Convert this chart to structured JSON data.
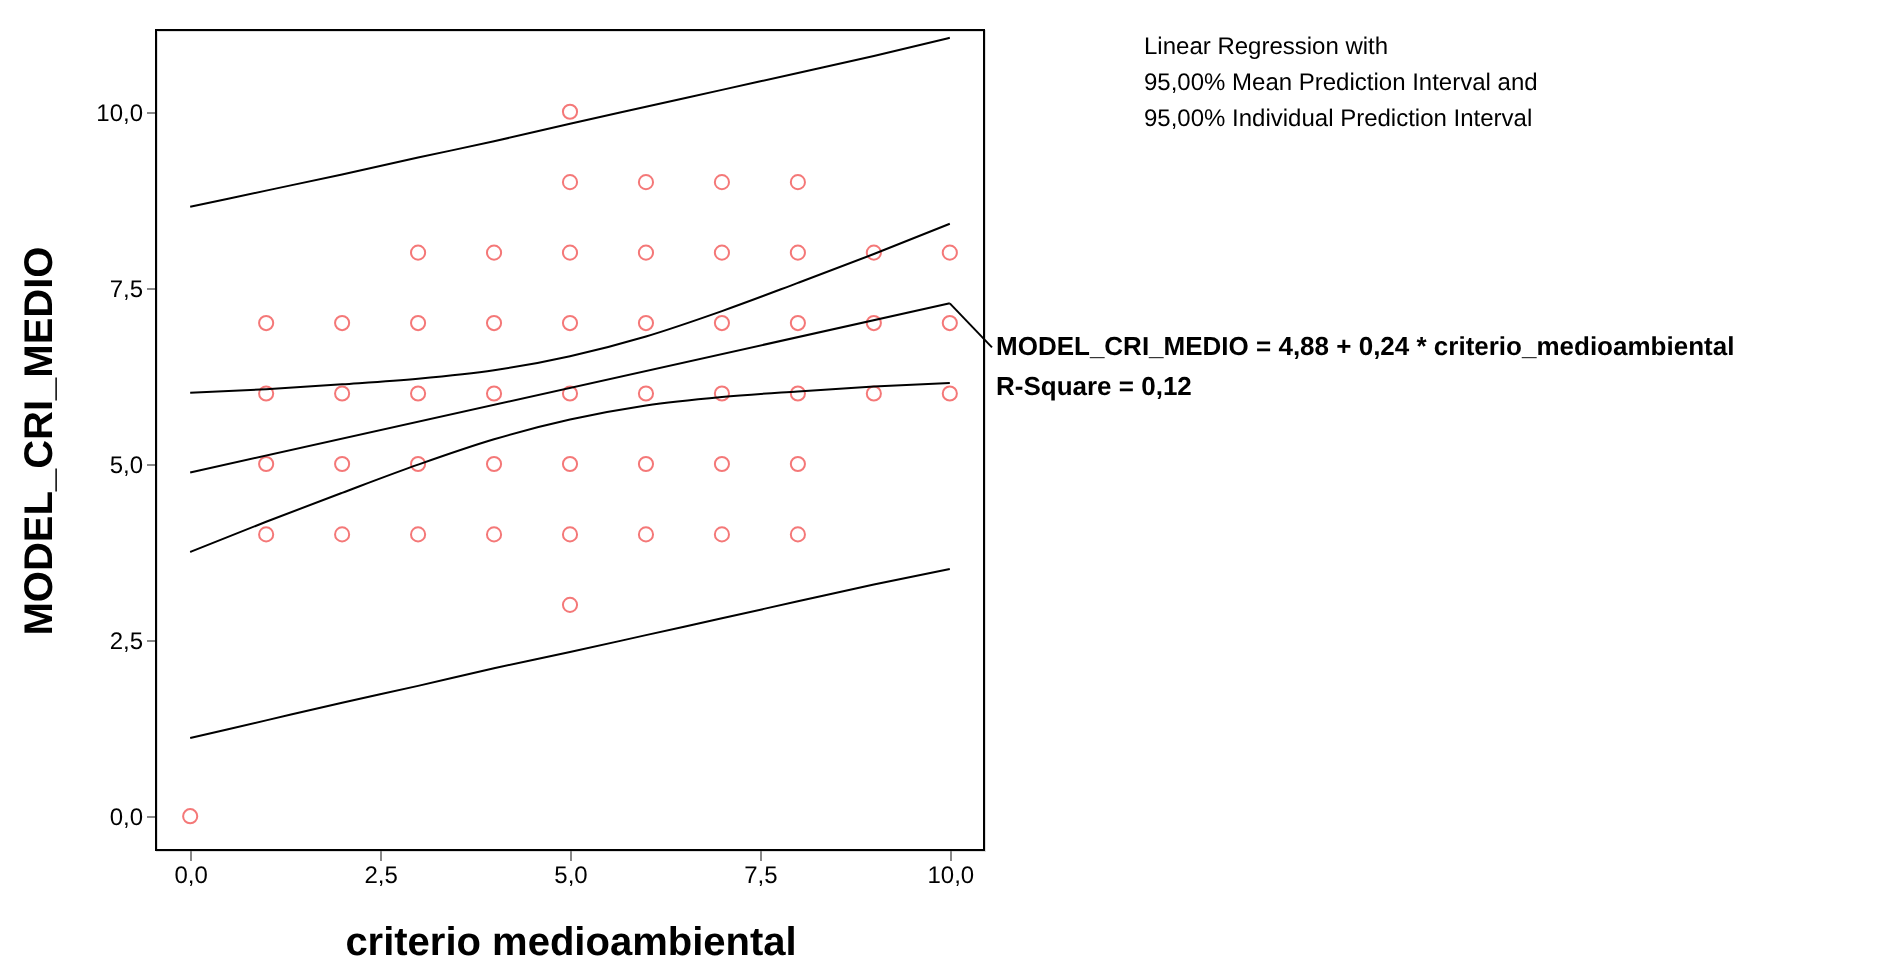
{
  "chart_data": {
    "type": "scatter",
    "xlabel": "criterio  medioambiental",
    "ylabel": "MODEL_CRI_MEDIO",
    "xlim": [
      -0.45,
      10.45
    ],
    "ylim": [
      -0.48,
      11.16
    ],
    "xticks": [
      {
        "value": 0,
        "label": "0,0"
      },
      {
        "value": 2.5,
        "label": "2,5"
      },
      {
        "value": 5,
        "label": "5,0"
      },
      {
        "value": 7.5,
        "label": "7,5"
      },
      {
        "value": 10,
        "label": "10,0"
      }
    ],
    "yticks": [
      {
        "value": 0,
        "label": "0,0"
      },
      {
        "value": 2.5,
        "label": "2,5"
      },
      {
        "value": 5,
        "label": "5,0"
      },
      {
        "value": 7.5,
        "label": "7,5"
      },
      {
        "value": 10,
        "label": "10,0"
      }
    ],
    "grid": false,
    "marker": "circle",
    "series": [
      {
        "color": "#f04040",
        "x": [
          0,
          1,
          1,
          1,
          1,
          2,
          2,
          2,
          2,
          3,
          3,
          3,
          3,
          3,
          4,
          4,
          4,
          4,
          4,
          5,
          5,
          5,
          5,
          5,
          5,
          5,
          5,
          6,
          6,
          6,
          6,
          6,
          6,
          7,
          7,
          7,
          7,
          7,
          7,
          8,
          8,
          8,
          8,
          8,
          8,
          9,
          9,
          9,
          10,
          10,
          10
        ],
        "values": [
          0,
          4,
          5,
          6,
          7,
          4,
          5,
          6,
          7,
          4,
          5,
          6,
          7,
          8,
          4,
          5,
          6,
          7,
          8,
          3,
          4,
          5,
          6,
          7,
          8,
          9,
          10,
          4,
          5,
          6,
          7,
          8,
          9,
          4,
          5,
          6,
          7,
          8,
          9,
          4,
          5,
          6,
          7,
          8,
          9,
          6,
          7,
          8,
          6,
          7,
          8
        ]
      },
      {
        "type": "line",
        "marker": "none",
        "color": "#000000",
        "x": [
          0,
          10
        ],
        "values": [
          4.88,
          7.28
        ]
      },
      {
        "type": "line",
        "marker": "none",
        "color": "#000000",
        "x": [
          0,
          1,
          2,
          3,
          4,
          5,
          6,
          7,
          8,
          9,
          10
        ],
        "values": [
          3.75,
          4.18,
          4.59,
          4.99,
          5.35,
          5.63,
          5.83,
          5.95,
          6.03,
          6.1,
          6.15
        ]
      },
      {
        "type": "line",
        "marker": "none",
        "color": "#000000",
        "x": [
          0,
          1,
          2,
          3,
          4,
          5,
          6,
          7,
          8,
          9,
          10
        ],
        "values": [
          6.01,
          6.06,
          6.13,
          6.21,
          6.33,
          6.53,
          6.81,
          7.17,
          7.57,
          7.98,
          8.41
        ]
      },
      {
        "type": "line",
        "marker": "none",
        "color": "#000000",
        "x": [
          0,
          1,
          2,
          3,
          4,
          5,
          6,
          7,
          8,
          9,
          10
        ],
        "values": [
          1.11,
          1.36,
          1.61,
          1.85,
          2.1,
          2.33,
          2.57,
          2.81,
          3.05,
          3.29,
          3.51
        ]
      },
      {
        "type": "line",
        "marker": "none",
        "color": "#000000",
        "x": [
          0,
          1,
          2,
          3,
          4,
          5,
          6,
          7,
          8,
          9,
          10
        ],
        "values": [
          8.65,
          8.88,
          9.11,
          9.35,
          9.58,
          9.83,
          10.07,
          10.31,
          10.55,
          10.79,
          11.05
        ]
      }
    ],
    "annotations": [
      {
        "text": "MODEL_CRI_MEDIO = 4,88 + 0,24 * criterio_medioambiental",
        "x": 10,
        "y": 7.28
      },
      "R-Square = 0,12",
      "Linear Regression with",
      "95,00% Mean Prediction Interval and",
      "95,00% Individual Prediction Interval"
    ]
  }
}
